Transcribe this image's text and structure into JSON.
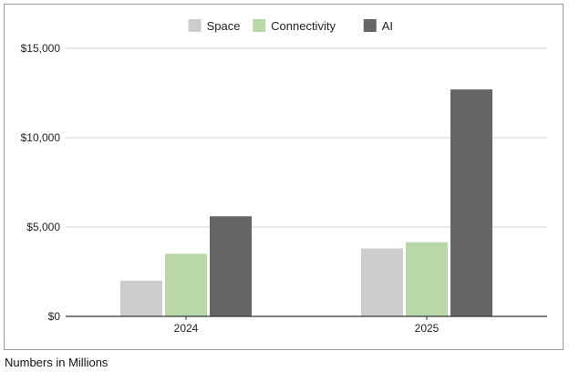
{
  "chart_data": {
    "type": "bar",
    "categories": [
      "2024",
      "2025"
    ],
    "series": [
      {
        "name": "Space",
        "values": [
          2000,
          3800
        ],
        "color": "#cccccc"
      },
      {
        "name": "Connectivity",
        "values": [
          3500,
          4150
        ],
        "color": "#b9d7a8"
      },
      {
        "name": "AI",
        "values": [
          5600,
          12700
        ],
        "color": "#666666"
      }
    ],
    "yticks": [
      0,
      5000,
      10000,
      15000
    ],
    "ytick_labels": [
      "$0",
      "$5,000",
      "$10,000",
      "$15,000"
    ],
    "ylim": [
      0,
      15000
    ],
    "grid": true,
    "legend_position": "top-center"
  },
  "footnote": "Numbers in Millions"
}
